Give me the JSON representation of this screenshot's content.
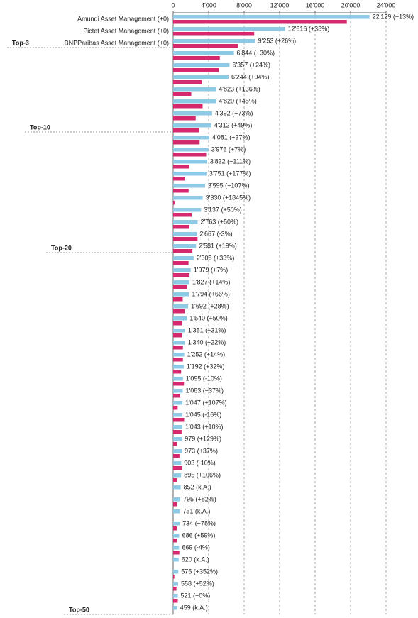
{
  "chart_data": {
    "type": "hbar",
    "categories": [
      "Amundi Asset Management (+0)",
      "Pictet Asset Management (+0)",
      "BNPParibas Asset Management (+0)",
      null,
      null,
      null,
      null,
      null,
      null,
      null,
      null,
      null,
      null,
      null,
      null,
      null,
      null,
      null,
      null,
      null,
      null,
      null,
      null,
      null,
      null,
      null,
      null,
      null,
      null,
      null,
      null,
      null,
      null,
      null,
      null,
      null,
      null,
      null,
      null,
      null,
      null,
      null,
      null,
      null,
      null,
      null,
      null,
      null,
      null,
      null
    ],
    "series": [
      {
        "color": "#8ecae6",
        "values": [
          22129,
          12616,
          9253,
          6844,
          6357,
          6244,
          4823,
          4820,
          4392,
          4312,
          4081,
          3976,
          3832,
          3751,
          3595,
          3330,
          3137,
          2763,
          2667,
          2581,
          2305,
          1979,
          1827,
          1794,
          1692,
          1540,
          1351,
          1340,
          1252,
          1192,
          1095,
          1083,
          1047,
          1045,
          1043,
          979,
          973,
          903,
          895,
          852,
          795,
          751,
          734,
          686,
          669,
          620,
          575,
          558,
          521,
          459
        ],
        "value_labels": [
          "22'129 (+13%)",
          "12'616 (+38%)",
          "9'253 (+26%)",
          "6'844 (+30%)",
          "6'357 (+24%)",
          "6'244 (+94%)",
          "4'823 (+136%)",
          "4'820 (+45%)",
          "4'392 (+73%)",
          "4'312 (+49%)",
          "4'081 (+37%)",
          "3'976 (+7%)",
          "3'832 (+111%)",
          "3'751 (+177%)",
          "3'595 (+107%)",
          "3'330 (+1845%)",
          "3'137 (+50%)",
          "2'763 (+50%)",
          "2'667 (-3%)",
          "2'581 (+19%)",
          "2'305 (+33%)",
          "1'979 (+7%)",
          "1'827 (+14%)",
          "1'794 (+66%)",
          "1'692 (+28%)",
          "1'540 (+50%)",
          "1'351 (+31%)",
          "1'340 (+22%)",
          "1'252 (+14%)",
          "1'192 (+32%)",
          "1'095 (-10%)",
          "1'083 (+37%)",
          "1'047 (+107%)",
          "1'045 (-16%)",
          "1'043 (+10%)",
          "979 (+129%)",
          "973 (+37%)",
          "903 (-10%)",
          "895 (+106%)",
          "852 (k.A.)",
          "795 (+82%)",
          "751 (k.A.)",
          "734 (+78%)",
          "686 (+59%)",
          "669 (-4%)",
          "620 (k.A.)",
          "575 (+352%)",
          "558 (+52%)",
          "521 (+0%)",
          "459 (k.A.)"
        ]
      },
      {
        "color": "#d6286e",
        "values": [
          19580,
          9140,
          7340,
          5260,
          5130,
          3220,
          2040,
          3320,
          2540,
          2890,
          2980,
          3720,
          1820,
          1350,
          1740,
          170,
          2090,
          1840,
          2750,
          2170,
          1730,
          1850,
          1600,
          1080,
          1320,
          1030,
          1030,
          1100,
          1100,
          900,
          1220,
          790,
          510,
          1240,
          950,
          430,
          710,
          1000,
          430,
          null,
          440,
          null,
          410,
          430,
          700,
          null,
          130,
          370,
          520,
          null
        ]
      }
    ],
    "xlim": [
      0,
      24000
    ],
    "xticks": [
      0,
      {
        "value": 4000,
        "label": "4'000"
      },
      {
        "value": 8000,
        "label": "8'000"
      },
      {
        "value": 12000,
        "label": "12'000"
      },
      {
        "value": 16000,
        "label": "16'000"
      },
      {
        "value": 20000,
        "label": "20'000"
      },
      {
        "value": 24000,
        "label": "24'000"
      }
    ],
    "grid": true,
    "annotations": [
      "Top-3",
      "Top-10",
      "Top-20",
      "Top-50"
    ]
  }
}
